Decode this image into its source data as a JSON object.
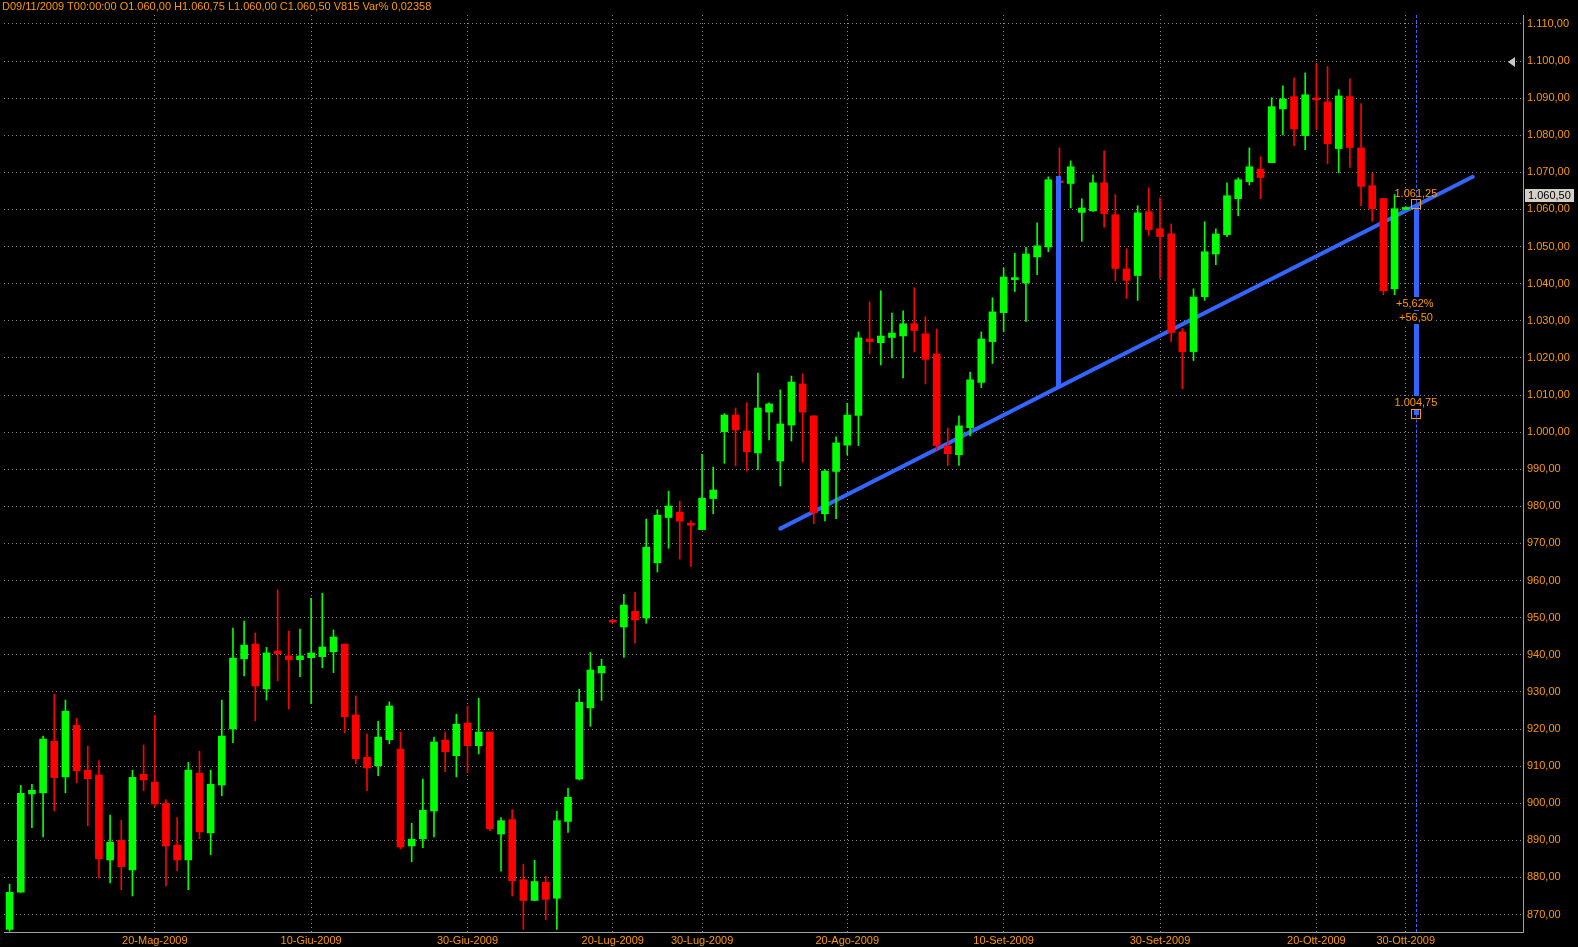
{
  "chart_data": {
    "type": "candlestick",
    "categories": [
      null,
      null,
      null,
      null,
      null,
      null,
      null,
      null,
      null,
      null,
      null,
      null,
      null,
      "20-Mag-2009",
      null,
      null,
      null,
      null,
      null,
      null,
      null,
      null,
      null,
      null,
      null,
      null,
      null,
      "10-Giu-2009",
      null,
      null,
      null,
      null,
      null,
      null,
      null,
      null,
      null,
      null,
      null,
      null,
      null,
      "30-Giu-2009",
      null,
      null,
      null,
      null,
      null,
      null,
      null,
      null,
      null,
      null,
      null,
      null,
      "20-Lug-2009",
      null,
      null,
      null,
      null,
      null,
      null,
      null,
      "30-Lug-2009",
      null,
      null,
      null,
      null,
      null,
      null,
      null,
      null,
      null,
      null,
      null,
      null,
      "20-Ago-2009",
      null,
      null,
      null,
      null,
      null,
      null,
      null,
      null,
      null,
      null,
      null,
      null,
      null,
      "10-Set-2009",
      null,
      null,
      null,
      null,
      null,
      null,
      null,
      null,
      null,
      null,
      null,
      null,
      null,
      "30-Set-2009",
      null,
      null,
      null,
      null,
      null,
      null,
      null,
      null,
      null,
      null,
      null,
      null,
      null,
      "20-Ott-2009",
      null,
      null,
      null,
      null,
      null,
      null,
      null,
      "30-Ott-2009",
      null,
      null,
      null,
      null,
      null,
      null,
      null,
      null,
      null,
      null
    ],
    "ohlc": [
      [
        866,
        878.2,
        865.5,
        876
      ],
      [
        876,
        904.8,
        876,
        902.7
      ],
      [
        902.5,
        905.1,
        893.4,
        903.5
      ],
      [
        902.8,
        918.1,
        890.9,
        917.3
      ],
      [
        916.7,
        929.4,
        897.9,
        906.9
      ],
      [
        907.1,
        927.8,
        902.8,
        924.8
      ],
      [
        921,
        922.9,
        905.5,
        908.7
      ],
      [
        908.9,
        915.4,
        893.9,
        906.6
      ],
      [
        907.6,
        911.4,
        879.9,
        885
      ],
      [
        884.7,
        896.8,
        878.5,
        889.5
      ],
      [
        890,
        895.4,
        876.7,
        882.9
      ],
      [
        882,
        908.9,
        875,
        907
      ],
      [
        907.8,
        915.7,
        903.4,
        906.3
      ],
      [
        905.7,
        923.7,
        899,
        899.8
      ],
      [
        900,
        901,
        877.7,
        888.5
      ],
      [
        888.7,
        896.1,
        881.8,
        884.7
      ],
      [
        884.7,
        911,
        876.7,
        908.9
      ],
      [
        908.1,
        914,
        890.4,
        892.3
      ],
      [
        892,
        908.9,
        886.1,
        905.1
      ],
      [
        904.9,
        927.8,
        902,
        918.1
      ],
      [
        920,
        947.2,
        916.3,
        939.1
      ],
      [
        938.9,
        949.1,
        934.3,
        942.6
      ],
      [
        942.9,
        945.9,
        922.2,
        931.6
      ],
      [
        930.8,
        942,
        927.8,
        940.5
      ],
      [
        941,
        957.5,
        933,
        940.3
      ],
      [
        939.7,
        946.4,
        925.4,
        938.7
      ],
      [
        938.7,
        946.9,
        934.1,
        939.7
      ],
      [
        939.2,
        955.2,
        926.8,
        940.5
      ],
      [
        939.5,
        956.6,
        936.5,
        942.1
      ],
      [
        940.8,
        946.7,
        935.2,
        944.8
      ],
      [
        942.9,
        942.9,
        919,
        923.3
      ],
      [
        923.8,
        928.9,
        910.6,
        912
      ],
      [
        912.4,
        918.6,
        903.4,
        909.5
      ],
      [
        910.1,
        922.1,
        907.4,
        917.8
      ],
      [
        917.1,
        927.3,
        916,
        926.2
      ],
      [
        914.6,
        919.2,
        887.7,
        888.2
      ],
      [
        888.5,
        894.6,
        884.2,
        890.3
      ],
      [
        890.4,
        906.5,
        888,
        898.1
      ],
      [
        897.9,
        917.8,
        890.9,
        916.5
      ],
      [
        917,
        919.2,
        908.5,
        913.9
      ],
      [
        912.8,
        924,
        907.1,
        921.3
      ],
      [
        921.6,
        926.2,
        908.2,
        915.5
      ],
      [
        915.5,
        928.3,
        913.3,
        919.2
      ],
      [
        919.2,
        919.2,
        892.6,
        893.1
      ],
      [
        891.7,
        896.1,
        881.7,
        895.3
      ],
      [
        895.6,
        898.3,
        875,
        879.1
      ],
      [
        879.4,
        883.6,
        866,
        873.8
      ],
      [
        873.8,
        884.6,
        873.7,
        878.9
      ],
      [
        878.7,
        880.3,
        868.6,
        874.1
      ],
      [
        874.4,
        897.8,
        866,
        895.3
      ],
      [
        895.1,
        904,
        892.1,
        901.6
      ],
      [
        906.5,
        930.7,
        906.3,
        927.2
      ],
      [
        925.7,
        940.6,
        920.7,
        935.9
      ],
      [
        935.1,
        938.8,
        927.7,
        936.9
      ],
      [
        949,
        949.2,
        948.6,
        948.8
      ],
      [
        947.5,
        956.3,
        939.3,
        953.4
      ],
      [
        951.7,
        956.8,
        943.1,
        949.4
      ],
      [
        949.9,
        976.6,
        948.5,
        969
      ],
      [
        964.8,
        979.1,
        962.3,
        977.6
      ],
      [
        977,
        984.1,
        968.7,
        980.1
      ],
      [
        978.4,
        981.4,
        965.8,
        976
      ],
      [
        975.4,
        976.1,
        963.8,
        974.9
      ],
      [
        973.7,
        994,
        973.7,
        982.2
      ],
      [
        982.1,
        990.6,
        978,
        984.4
      ],
      [
        1000.1,
        1005,
        991.6,
        1004.6
      ],
      [
        1004.6,
        1006.5,
        990.9,
        1000.6
      ],
      [
        1000.3,
        1007.9,
        989.5,
        994.7
      ],
      [
        994.4,
        1015.9,
        989.9,
        1006.5
      ],
      [
        1005.4,
        1007.9,
        997.9,
        1007.6
      ],
      [
        992.2,
        1011.4,
        985.5,
        1002.2
      ],
      [
        1001.9,
        1015.1,
        997.6,
        1013.5
      ],
      [
        1013,
        1015.7,
        991.9,
        1005.4
      ],
      [
        1004.4,
        1004.4,
        975.3,
        978.3
      ],
      [
        978,
        989.9,
        976.1,
        989.5
      ],
      [
        989.4,
        998.7,
        976.7,
        997.1
      ],
      [
        996.5,
        1007.8,
        993.9,
        1004.6
      ],
      [
        1004.5,
        1027,
        996.4,
        1025.4
      ],
      [
        1025.1,
        1035.1,
        1021.1,
        1024.4
      ],
      [
        1024.1,
        1038.1,
        1018.1,
        1025.9
      ],
      [
        1025.5,
        1032.1,
        1020,
        1026.7
      ],
      [
        1025.9,
        1032.7,
        1014.6,
        1029.2
      ],
      [
        1029.2,
        1038.9,
        1021.6,
        1027.4
      ],
      [
        1026.5,
        1031.1,
        1013,
        1019.6
      ],
      [
        1021.1,
        1027.8,
        995.2,
        996.4
      ],
      [
        996.3,
        1001.1,
        991,
        994.2
      ],
      [
        993.9,
        1004.4,
        991,
        1001.7
      ],
      [
        1001.2,
        1016.2,
        999,
        1014.1
      ],
      [
        1013.4,
        1027,
        1012,
        1025.1
      ],
      [
        1024.4,
        1036.2,
        1018.5,
        1032.4
      ],
      [
        1032.2,
        1044.2,
        1027.1,
        1041.8
      ],
      [
        1041.1,
        1048.2,
        1037.9,
        1041.4
      ],
      [
        1040.2,
        1049.8,
        1029.8,
        1048
      ],
      [
        1047.2,
        1056.4,
        1042.4,
        1050.2
      ],
      [
        1049.9,
        1068.8,
        1048.6,
        1068
      ],
      [
        1067.7,
        1076.6,
        1066.5,
        1067.2
      ],
      [
        1067,
        1073.1,
        1060.4,
        1071.5
      ],
      [
        1059.2,
        1062.9,
        1051.4,
        1060.4
      ],
      [
        1059.6,
        1069.3,
        1059.5,
        1067.2
      ],
      [
        1067.2,
        1075.8,
        1055.2,
        1058.9
      ],
      [
        1058.6,
        1064,
        1040.8,
        1044.1
      ],
      [
        1044,
        1049.4,
        1036,
        1040.9
      ],
      [
        1042.2,
        1061,
        1035.5,
        1059.1
      ],
      [
        1059.4,
        1065.8,
        1053,
        1054.6
      ],
      [
        1054.8,
        1063.1,
        1041.4,
        1052.7
      ],
      [
        1053.4,
        1056.1,
        1024.4,
        1026.9
      ],
      [
        1027,
        1027.9,
        1011.7,
        1021.7
      ],
      [
        1021.7,
        1038.6,
        1019.3,
        1036.4
      ],
      [
        1036.5,
        1056.7,
        1035.5,
        1048.6
      ],
      [
        1048,
        1054.8,
        1045.1,
        1053.4
      ],
      [
        1053.2,
        1067.2,
        1052.7,
        1063.7
      ],
      [
        1062.9,
        1068.5,
        1058.3,
        1068
      ],
      [
        1067.5,
        1076.6,
        1066.6,
        1071.5
      ],
      [
        1070.9,
        1074.2,
        1062.9,
        1068.6
      ],
      [
        1072.6,
        1090.1,
        1072.6,
        1087.7
      ],
      [
        1087.1,
        1093.3,
        1080.1,
        1089.8
      ],
      [
        1090.4,
        1095.5,
        1077.2,
        1081.7
      ],
      [
        1079.9,
        1096.8,
        1076.1,
        1090.9
      ],
      [
        1089.8,
        1099.3,
        1081.5,
        1089.5
      ],
      [
        1089,
        1098.5,
        1072.3,
        1077.7
      ],
      [
        1076.4,
        1092.3,
        1069.9,
        1090.6
      ],
      [
        1090.4,
        1095.2,
        1071.3,
        1076.7
      ],
      [
        1076.6,
        1088.5,
        1061,
        1066.2
      ],
      [
        1066.4,
        1069.8,
        1056.8,
        1060.2
      ],
      [
        1062.9,
        1063,
        1037,
        1038.1
      ],
      [
        1038.6,
        1064,
        1037,
        1060.2
      ],
      [
        1060,
        1060.75,
        1060,
        1060.5
      ],
      null,
      null,
      null,
      null,
      null,
      null,
      null,
      null,
      null,
      null
    ],
    "colors": [
      "#00ff00",
      "#00ff00",
      "#00ff00",
      "#00ff00",
      "#ff0000",
      "#00ff00",
      "#ff0000",
      "#ff0000",
      "#ff0000",
      "#00ff00",
      "#ff0000",
      "#00ff00",
      "#ff0000",
      "#ff0000",
      "#ff0000",
      "#ff0000",
      "#00ff00",
      "#ff0000",
      "#00ff00",
      "#00ff00",
      "#00ff00",
      "#00ff00",
      "#ff0000",
      "#00ff00",
      "#ff0000",
      "#ff0000",
      "#00ff00",
      "#00ff00",
      "#00ff00",
      "#00ff00",
      "#ff0000",
      "#ff0000",
      "#ff0000",
      "#00ff00",
      "#00ff00",
      "#ff0000",
      "#00ff00",
      "#00ff00",
      "#00ff00",
      "#ff0000",
      "#00ff00",
      "#ff0000",
      "#00ff00",
      "#ff0000",
      "#00ff00",
      "#ff0000",
      "#ff0000",
      "#00ff00",
      "#ff0000",
      "#00ff00",
      "#00ff00",
      "#00ff00",
      "#00ff00",
      "#00ff00",
      "#ff0000",
      "#00ff00",
      "#ff0000",
      "#00ff00",
      "#00ff00",
      "#00ff00",
      "#ff0000",
      "#ff0000",
      "#00ff00",
      "#00ff00",
      "#00ff00",
      "#ff0000",
      "#ff0000",
      "#00ff00",
      "#00ff00",
      "#00ff00",
      "#00ff00",
      "#ff0000",
      "#ff0000",
      "#00ff00",
      "#00ff00",
      "#00ff00",
      "#00ff00",
      "#ff0000",
      "#00ff00",
      "#00ff00",
      "#00ff00",
      "#ff0000",
      "#ff0000",
      "#ff0000",
      "#ff0000",
      "#00ff00",
      "#00ff00",
      "#00ff00",
      "#00ff00",
      "#00ff00",
      "#00ff00",
      "#00ff00",
      "#00ff00",
      "#00ff00",
      "#ff0000",
      "#00ff00",
      "#00ff00",
      "#00ff00",
      "#ff0000",
      "#ff0000",
      "#ff0000",
      "#00ff00",
      "#ff0000",
      "#ff0000",
      "#ff0000",
      "#ff0000",
      "#00ff00",
      "#00ff00",
      "#00ff00",
      "#00ff00",
      "#00ff00",
      "#00ff00",
      "#ff0000",
      "#00ff00",
      "#00ff00",
      "#ff0000",
      "#00ff00",
      "#ff0000",
      "#ff0000",
      "#00ff00",
      "#ff0000",
      "#ff0000",
      "#ff0000",
      "#ff0000",
      "#00ff00",
      "#00ff00",
      null,
      null,
      null,
      null,
      null,
      null,
      null,
      null,
      null,
      null
    ],
    "series": [
      {
        "type": "line",
        "color": "#3366ff",
        "values": [
          null,
          null,
          null,
          null,
          null,
          null,
          null,
          null,
          null,
          null,
          null,
          null,
          null,
          null,
          null,
          null,
          null,
          null,
          null,
          null,
          null,
          null,
          null,
          null,
          null,
          null,
          null,
          null,
          null,
          null,
          null,
          null,
          null,
          null,
          null,
          null,
          null,
          null,
          null,
          null,
          null,
          null,
          null,
          null,
          null,
          null,
          null,
          null,
          null,
          null,
          null,
          null,
          null,
          null,
          null,
          null,
          null,
          null,
          null,
          null,
          null,
          null,
          null,
          null,
          null,
          null,
          null,
          null,
          null,
          974.0,
          null,
          null,
          null,
          null,
          null,
          null,
          null,
          null,
          null,
          null,
          null,
          null,
          null,
          null,
          null,
          null,
          null,
          null,
          null,
          null,
          null,
          null,
          null,
          null,
          null,
          null,
          null,
          null,
          null,
          null,
          null,
          null,
          null,
          null,
          null,
          null,
          null,
          null,
          null,
          null,
          null,
          null,
          null,
          null,
          null,
          null,
          null,
          null,
          null,
          null,
          null,
          null,
          null,
          null,
          null,
          null,
          null,
          null,
          null,
          null,
          null,
          1068.8,
          null,
          null,
          null,
          null
        ]
      }
    ],
    "ylim": [
      865.3,
      1112.4
    ],
    "yticks": [
      {
        "value": 870,
        "label": "870,00"
      },
      {
        "value": 880,
        "label": "880,00"
      },
      {
        "value": 890,
        "label": "890,00"
      },
      {
        "value": 900,
        "label": "900,00"
      },
      {
        "value": 910,
        "label": "910,00"
      },
      {
        "value": 920,
        "label": "920,00"
      },
      {
        "value": 930,
        "label": "930,00"
      },
      {
        "value": 940,
        "label": "940,00"
      },
      {
        "value": 950,
        "label": "950,00"
      },
      {
        "value": 960,
        "label": "960,00"
      },
      {
        "value": 970,
        "label": "970,00"
      },
      {
        "value": 980,
        "label": "980,00"
      },
      {
        "value": 990,
        "label": "990,00"
      },
      {
        "value": 1000,
        "label": "1.000,00"
      },
      {
        "value": 1010,
        "label": "1.010,00"
      },
      {
        "value": 1020,
        "label": "1.020,00"
      },
      {
        "value": 1030,
        "label": "1.030,00"
      },
      {
        "value": 1040,
        "label": "1.040,00"
      },
      {
        "value": 1050,
        "label": "1.050,00"
      },
      {
        "value": 1060,
        "label": "1.060,00"
      },
      {
        "value": 1070,
        "label": "1.070,00"
      },
      {
        "value": 1080,
        "label": "1.080,00"
      },
      {
        "value": 1090,
        "label": "1.090,00"
      },
      {
        "value": 1100,
        "label": "1.100,00"
      },
      {
        "value": 1110,
        "label": "1.110,00"
      }
    ],
    "grid": true,
    "annotations": [
      "D09/11/2009 T00:00:00 O1.060,00 H1.060,75 L1.060,00 C1.060,50 V815 Var% 0,02358",
      {
        "text": "1.061,25",
        "y": 1061.25
      },
      "+5,62%",
      "+56,50",
      {
        "text": "1.004,75",
        "y": 1004.75
      },
      "1.060,50"
    ]
  }
}
